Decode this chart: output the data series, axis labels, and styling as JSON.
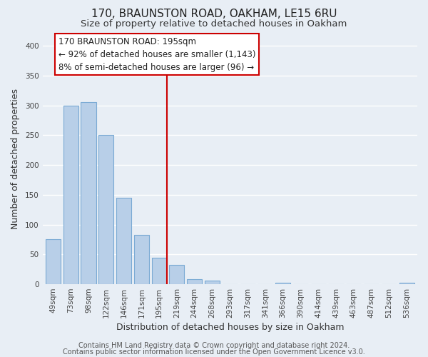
{
  "title": "170, BRAUNSTON ROAD, OAKHAM, LE15 6RU",
  "subtitle": "Size of property relative to detached houses in Oakham",
  "xlabel": "Distribution of detached houses by size in Oakham",
  "ylabel": "Number of detached properties",
  "bar_labels": [
    "49sqm",
    "73sqm",
    "98sqm",
    "122sqm",
    "146sqm",
    "171sqm",
    "195sqm",
    "219sqm",
    "244sqm",
    "268sqm",
    "293sqm",
    "317sqm",
    "341sqm",
    "366sqm",
    "390sqm",
    "414sqm",
    "439sqm",
    "463sqm",
    "487sqm",
    "512sqm",
    "536sqm"
  ],
  "bar_heights": [
    75,
    300,
    305,
    250,
    145,
    83,
    45,
    32,
    8,
    6,
    0,
    0,
    0,
    2,
    0,
    0,
    0,
    0,
    0,
    0,
    2
  ],
  "bar_color": "#b8cfe8",
  "bar_edge_color": "#7aaad4",
  "vline_x_index": 6,
  "vline_color": "#cc0000",
  "annotation_line1": "170 BRAUNSTON ROAD: 195sqm",
  "annotation_line2": "← 92% of detached houses are smaller (1,143)",
  "annotation_line3": "8% of semi-detached houses are larger (96) →",
  "ylim": [
    0,
    420
  ],
  "yticks": [
    0,
    50,
    100,
    150,
    200,
    250,
    300,
    350,
    400
  ],
  "footer1": "Contains HM Land Registry data © Crown copyright and database right 2024.",
  "footer2": "Contains public sector information licensed under the Open Government Licence v3.0.",
  "background_color": "#e8eef5",
  "plot_background_color": "#e8eef5",
  "grid_color": "#ffffff",
  "title_fontsize": 11,
  "subtitle_fontsize": 9.5,
  "axis_label_fontsize": 9,
  "tick_fontsize": 7.5,
  "footer_fontsize": 7,
  "ann_fontsize": 8.5
}
